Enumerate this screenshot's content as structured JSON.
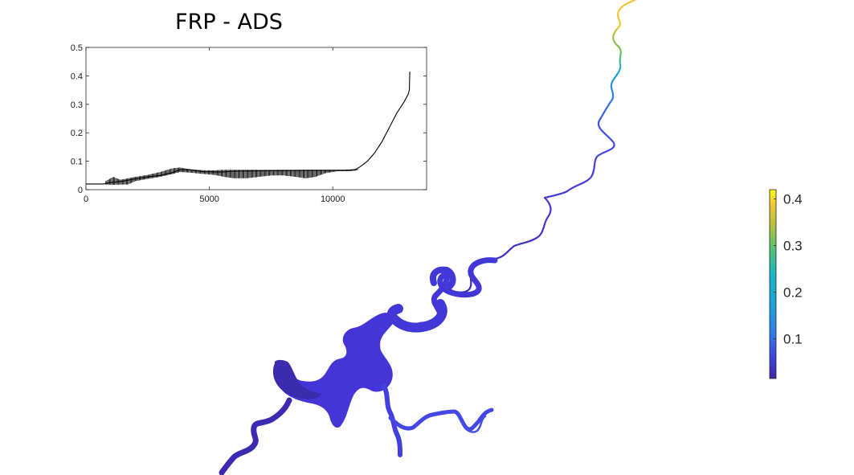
{
  "figure": {
    "title": "FRP - ADS"
  },
  "chart_data": [
    {
      "type": "line",
      "title": "FRP - ADS",
      "xlabel": "",
      "ylabel": "",
      "xlim": [
        0,
        13800
      ],
      "ylim": [
        0,
        0.5
      ],
      "xticks": [
        0,
        5000,
        10000
      ],
      "xtick_labels": [
        "0",
        "5000",
        "10000"
      ],
      "yticks": [
        0,
        0.1,
        0.2,
        0.3,
        0.4,
        0.5
      ],
      "ytick_labels": [
        "0",
        "0.1",
        "0.2",
        "0.3",
        "0.4",
        "0.5"
      ],
      "grid": false,
      "line_color": "#000000",
      "series": [
        {
          "values_description_free": true,
          "x": [
            0,
            700,
            1000,
            1500,
            2000,
            2500,
            3000,
            3500,
            3800,
            4200,
            4800,
            5500,
            6000,
            7000,
            8000,
            9000,
            9800,
            10400,
            10900,
            11100,
            11400,
            11700,
            12000,
            12300,
            12600,
            12900,
            13050,
            13100,
            13120
          ],
          "y": [
            0.02,
            0.02,
            0.025,
            0.03,
            0.038,
            0.045,
            0.05,
            0.06,
            0.07,
            0.07,
            0.063,
            0.062,
            0.065,
            0.066,
            0.067,
            0.068,
            0.068,
            0.068,
            0.07,
            0.08,
            0.1,
            0.13,
            0.17,
            0.22,
            0.27,
            0.31,
            0.335,
            0.35,
            0.415
          ]
        }
      ],
      "envelope": {
        "x": [
          800,
          1100,
          1400,
          1700,
          2000,
          2500,
          3000,
          3500,
          3800,
          4200,
          4800,
          5200,
          5600,
          6000,
          6500,
          7000,
          7500,
          8000,
          8500,
          8900,
          9300,
          9700,
          10200,
          10700,
          11000
        ],
        "lower": [
          0.018,
          0.017,
          0.018,
          0.018,
          0.03,
          0.038,
          0.045,
          0.055,
          0.062,
          0.06,
          0.055,
          0.052,
          0.045,
          0.04,
          0.04,
          0.045,
          0.05,
          0.05,
          0.045,
          0.04,
          0.045,
          0.058,
          0.065,
          0.065,
          0.068
        ],
        "upper": [
          0.03,
          0.045,
          0.035,
          0.04,
          0.045,
          0.052,
          0.062,
          0.075,
          0.078,
          0.072,
          0.068,
          0.068,
          0.07,
          0.07,
          0.07,
          0.07,
          0.07,
          0.07,
          0.07,
          0.07,
          0.07,
          0.07,
          0.07,
          0.07,
          0.075
        ]
      }
    },
    {
      "type": "heatmap",
      "colormap": "parula",
      "colorbar_ticks": [
        0.1,
        0.2,
        0.3,
        0.4
      ],
      "colorbar_tick_labels": [
        "0.1",
        "0.2",
        "0.3",
        "0.4"
      ],
      "colorbar_range": [
        0.015,
        0.42
      ],
      "colors": {
        "low": "#3e26a8",
        "mid_low": "#2c7fe8",
        "mid": "#17b6c4",
        "mid_high": "#78c74a",
        "high": "#f2d830",
        "top": "#f9fb0e"
      }
    }
  ]
}
